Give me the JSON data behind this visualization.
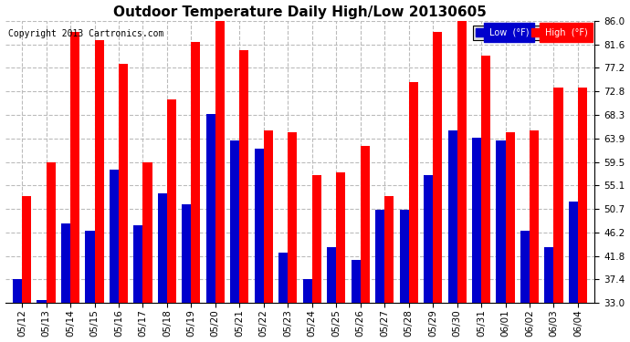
{
  "title": "Outdoor Temperature Daily High/Low 20130605",
  "copyright": "Copyright 2013 Cartronics.com",
  "legend_low": "Low  (°F)",
  "legend_high": "High  (°F)",
  "dates": [
    "05/12",
    "05/13",
    "05/14",
    "05/15",
    "05/16",
    "05/17",
    "05/18",
    "05/19",
    "05/20",
    "05/21",
    "05/22",
    "05/23",
    "05/24",
    "05/25",
    "05/26",
    "05/27",
    "05/28",
    "05/29",
    "05/30",
    "05/31",
    "06/01",
    "06/02",
    "06/03",
    "06/04"
  ],
  "highs": [
    53.0,
    59.5,
    84.0,
    82.5,
    78.0,
    59.5,
    71.2,
    82.0,
    86.0,
    80.5,
    65.5,
    65.0,
    57.0,
    57.5,
    62.5,
    53.0,
    74.5,
    84.0,
    86.0,
    79.5,
    65.0,
    65.5,
    73.5,
    73.5
  ],
  "lows": [
    37.5,
    33.5,
    48.0,
    46.5,
    58.0,
    47.5,
    53.5,
    51.5,
    68.5,
    63.5,
    62.0,
    42.5,
    37.5,
    43.5,
    41.0,
    50.5,
    50.5,
    57.0,
    65.5,
    64.0,
    63.5,
    46.5,
    43.5,
    52.0
  ],
  "ylim_min": 33.0,
  "ylim_max": 86.0,
  "yticks": [
    33.0,
    37.4,
    41.8,
    46.2,
    50.7,
    55.1,
    59.5,
    63.9,
    68.3,
    72.8,
    77.2,
    81.6,
    86.0
  ],
  "ytick_labels": [
    "33.0",
    "37.4",
    "41.8",
    "46.2",
    "50.7",
    "55.1",
    "59.5",
    "63.9",
    "68.3",
    "72.8",
    "77.2",
    "81.6",
    "86.0"
  ],
  "high_color": "#ff0000",
  "low_color": "#0000cc",
  "bg_color": "#ffffff",
  "bar_width": 0.38,
  "title_fontsize": 11,
  "copyright_fontsize": 7,
  "tick_fontsize": 7.5,
  "grid_color": "#bbbbbb",
  "grid_style": "--"
}
